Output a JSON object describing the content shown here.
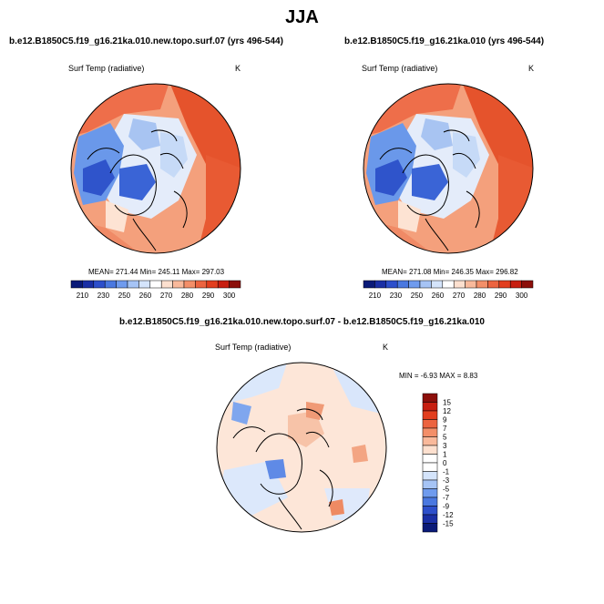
{
  "header": {
    "title": "JJA"
  },
  "chart_data": [
    {
      "type": "heatmap",
      "title": "b.e12.B1850C5.f19_g16.21ka.010.new.topo.surf.07 (yrs 496-544)",
      "variable": "Surf Temp (radiative)",
      "units": "K",
      "stats": "MEAN= 271.44  Min= 245.11  Max= 297.03",
      "colorbar": {
        "ticks": [
          "210",
          "230",
          "250",
          "260",
          "270",
          "280",
          "290",
          "300"
        ],
        "colors": [
          "#0a1a78",
          "#1a2fa5",
          "#2d4fcb",
          "#4a78e0",
          "#6f9bee",
          "#a6c4f5",
          "#d4e4fb",
          "#ffffff",
          "#fde0cf",
          "#f9b99b",
          "#f38f69",
          "#ec6440",
          "#e23e1e",
          "#c71e10",
          "#8c0f0a"
        ]
      }
    },
    {
      "type": "heatmap",
      "title": "b.e12.B1850C5.f19_g16.21ka.010 (yrs 496-544)",
      "variable": "Surf Temp (radiative)",
      "units": "K",
      "stats": "MEAN= 271.08  Min= 246.35  Max= 296.82",
      "colorbar": {
        "ticks": [
          "210",
          "230",
          "250",
          "260",
          "270",
          "280",
          "290",
          "300"
        ],
        "colors": [
          "#0a1a78",
          "#1a2fa5",
          "#2d4fcb",
          "#4a78e0",
          "#6f9bee",
          "#a6c4f5",
          "#d4e4fb",
          "#ffffff",
          "#fde0cf",
          "#f9b99b",
          "#f38f69",
          "#ec6440",
          "#e23e1e",
          "#c71e10",
          "#8c0f0a"
        ]
      }
    },
    {
      "type": "heatmap",
      "title": "b.e12.B1850C5.f19_g16.21ka.010.new.topo.surf.07 - b.e12.B1850C5.f19_g16.21ka.010",
      "variable": "Surf Temp (radiative)",
      "units": "K",
      "stats": "MIN =  -6.93 MAX =   8.83",
      "colorbar": {
        "ticks": [
          "15",
          "12",
          "9",
          "7",
          "5",
          "3",
          "1",
          "0",
          "-1",
          "-3",
          "-5",
          "-7",
          "-9",
          "-12",
          "-15"
        ],
        "colors": [
          "#8c0f0a",
          "#c71e10",
          "#e23e1e",
          "#ec6440",
          "#f38f69",
          "#f9b99b",
          "#fde0cf",
          "#ffffff",
          "#ffffff",
          "#d4e4fb",
          "#a6c4f5",
          "#6f9bee",
          "#4a78e0",
          "#2d4fcb",
          "#1a2fa5",
          "#0a1a78"
        ]
      }
    }
  ]
}
